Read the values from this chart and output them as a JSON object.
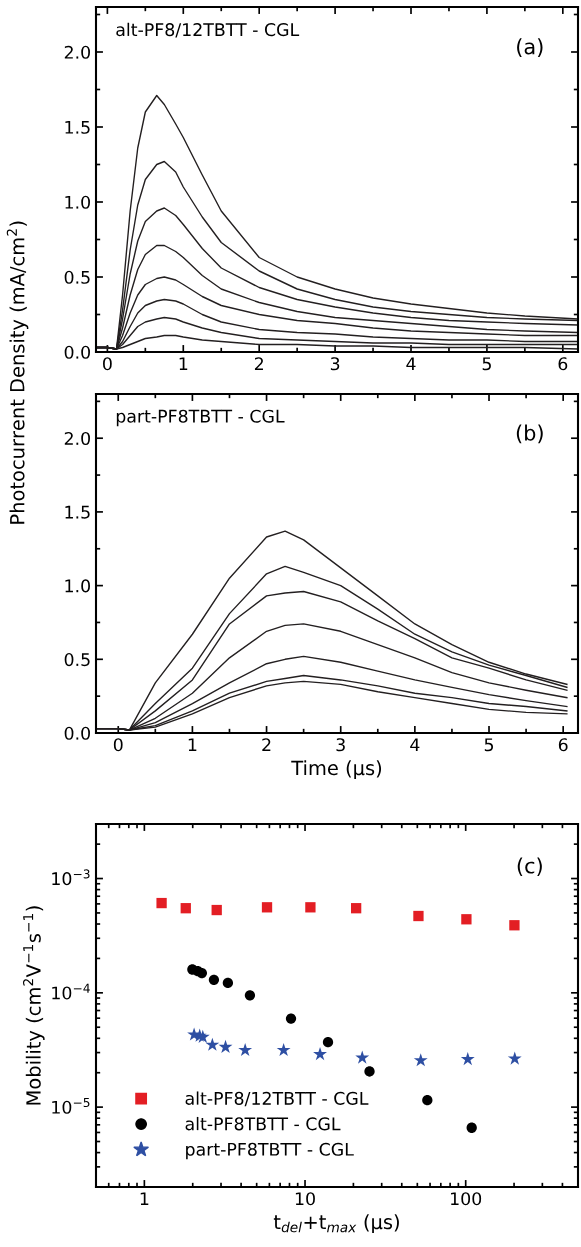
{
  "chart_data": [
    {
      "type": "line",
      "ylabel": "Photocurrent Density (mA/cm$^{2}$)",
      "annotations": [
        "alt-PF8/12TBTT - CGL",
        "(a)"
      ],
      "xlim": [
        -0.15,
        6.2
      ],
      "ylim": [
        0,
        2.3
      ],
      "xticks": [
        0,
        1,
        2,
        3,
        4,
        5,
        6
      ],
      "yticks": [
        {
          "value": 0,
          "label": "0.0"
        },
        {
          "value": 0.5,
          "label": "0.5"
        },
        {
          "value": 1,
          "label": "1.0"
        },
        {
          "value": 1.5,
          "label": "1.5"
        },
        {
          "value": 2,
          "label": "2.0"
        }
      ],
      "grid": false,
      "legend": false,
      "line_style": "solid",
      "marker": "none",
      "x": [
        -0.15,
        0,
        0.12,
        0.2,
        0.3,
        0.4,
        0.5,
        0.65,
        0.75,
        0.9,
        1.0,
        1.25,
        1.5,
        2.0,
        2.5,
        3.0,
        3.5,
        4.0,
        4.5,
        5.0,
        5.5,
        6.2
      ],
      "series": [
        {
          "color": "#231f20",
          "values": [
            0.03,
            0.03,
            0.02,
            0.38,
            0.94,
            1.36,
            1.6,
            1.71,
            1.65,
            1.52,
            1.43,
            1.18,
            0.94,
            0.63,
            0.5,
            0.42,
            0.36,
            0.32,
            0.29,
            0.26,
            0.24,
            0.22
          ]
        },
        {
          "color": "#231f20",
          "values": [
            0.03,
            0.03,
            0.02,
            0.28,
            0.68,
            0.98,
            1.15,
            1.25,
            1.27,
            1.2,
            1.1,
            0.9,
            0.73,
            0.54,
            0.42,
            0.35,
            0.3,
            0.27,
            0.25,
            0.23,
            0.22,
            0.21
          ]
        },
        {
          "color": "#231f20",
          "values": [
            0.03,
            0.03,
            0.02,
            0.22,
            0.52,
            0.74,
            0.87,
            0.94,
            0.96,
            0.91,
            0.85,
            0.69,
            0.56,
            0.43,
            0.35,
            0.3,
            0.26,
            0.23,
            0.21,
            0.2,
            0.19,
            0.18
          ]
        },
        {
          "color": "#231f20",
          "values": [
            0.03,
            0.03,
            0.02,
            0.16,
            0.38,
            0.55,
            0.65,
            0.71,
            0.71,
            0.67,
            0.63,
            0.51,
            0.42,
            0.33,
            0.27,
            0.23,
            0.21,
            0.19,
            0.17,
            0.15,
            0.14,
            0.13
          ]
        },
        {
          "color": "#231f20",
          "values": [
            0.03,
            0.03,
            0.02,
            0.11,
            0.26,
            0.38,
            0.45,
            0.49,
            0.5,
            0.48,
            0.45,
            0.37,
            0.31,
            0.25,
            0.21,
            0.19,
            0.16,
            0.14,
            0.13,
            0.12,
            0.11,
            0.11
          ]
        },
        {
          "color": "#231f20",
          "values": [
            0.03,
            0.03,
            0.02,
            0.07,
            0.17,
            0.26,
            0.31,
            0.34,
            0.35,
            0.34,
            0.32,
            0.25,
            0.2,
            0.15,
            0.13,
            0.12,
            0.1,
            0.09,
            0.08,
            0.08,
            0.07,
            0.07
          ]
        },
        {
          "color": "#231f20",
          "values": [
            0.03,
            0.03,
            0.02,
            0.05,
            0.11,
            0.17,
            0.2,
            0.22,
            0.23,
            0.22,
            0.2,
            0.16,
            0.13,
            0.09,
            0.08,
            0.07,
            0.06,
            0.06,
            0.05,
            0.05,
            0.05,
            0.05
          ]
        },
        {
          "color": "#231f20",
          "values": [
            0.03,
            0.03,
            0.02,
            0.03,
            0.05,
            0.07,
            0.09,
            0.1,
            0.11,
            0.11,
            0.1,
            0.08,
            0.07,
            0.05,
            0.05,
            0.04,
            0.04,
            0.03,
            0.03,
            0.03,
            0.03,
            0.02
          ]
        }
      ]
    },
    {
      "type": "line",
      "xlabel": "Time (µs)",
      "annotations": [
        "part-PF8TBTT - CGL",
        "(b)"
      ],
      "xlim": [
        -0.3,
        6.2
      ],
      "ylim": [
        0,
        2.3
      ],
      "xticks": [
        0,
        1,
        2,
        3,
        4,
        5,
        6
      ],
      "yticks": [
        {
          "value": 0,
          "label": "0.0"
        },
        {
          "value": 0.5,
          "label": "0.5"
        },
        {
          "value": 1,
          "label": "1.0"
        },
        {
          "value": 1.5,
          "label": "1.5"
        },
        {
          "value": 2,
          "label": "2.0"
        }
      ],
      "grid": false,
      "legend": false,
      "line_style": "solid",
      "marker": "none",
      "x": [
        -0.3,
        0,
        0.15,
        0.5,
        1.0,
        1.5,
        2.0,
        2.25,
        2.5,
        3.0,
        3.5,
        4.0,
        4.5,
        5.0,
        5.5,
        6.05
      ],
      "series": [
        {
          "color": "#231f20",
          "values": [
            0.03,
            0.03,
            0.02,
            0.34,
            0.67,
            1.05,
            1.33,
            1.37,
            1.31,
            1.12,
            0.93,
            0.74,
            0.6,
            0.48,
            0.4,
            0.33
          ]
        },
        {
          "color": "#231f20",
          "values": [
            0.03,
            0.03,
            0.02,
            0.2,
            0.44,
            0.81,
            1.08,
            1.13,
            1.09,
            1.0,
            0.84,
            0.67,
            0.55,
            0.46,
            0.39,
            0.31
          ]
        },
        {
          "color": "#231f20",
          "values": [
            0.03,
            0.03,
            0.02,
            0.15,
            0.36,
            0.74,
            0.93,
            0.95,
            0.96,
            0.89,
            0.76,
            0.64,
            0.51,
            0.44,
            0.36,
            0.29
          ]
        },
        {
          "color": "#231f20",
          "values": [
            0.03,
            0.03,
            0.02,
            0.1,
            0.27,
            0.51,
            0.69,
            0.73,
            0.74,
            0.69,
            0.6,
            0.51,
            0.41,
            0.34,
            0.29,
            0.24
          ]
        },
        {
          "color": "#231f20",
          "values": [
            0.03,
            0.03,
            0.02,
            0.07,
            0.2,
            0.34,
            0.47,
            0.5,
            0.52,
            0.48,
            0.42,
            0.36,
            0.31,
            0.26,
            0.22,
            0.18
          ]
        },
        {
          "color": "#231f20",
          "values": [
            0.03,
            0.03,
            0.02,
            0.05,
            0.15,
            0.27,
            0.35,
            0.37,
            0.39,
            0.36,
            0.32,
            0.27,
            0.24,
            0.2,
            0.18,
            0.15
          ]
        },
        {
          "color": "#231f20",
          "values": [
            0.03,
            0.03,
            0.02,
            0.04,
            0.13,
            0.24,
            0.32,
            0.34,
            0.35,
            0.33,
            0.28,
            0.24,
            0.2,
            0.16,
            0.14,
            0.13
          ]
        }
      ]
    },
    {
      "type": "scatter",
      "xlabel": "t$_{del}$+t$_{max}$ (µs)",
      "ylabel": "Mobility (cm$^{2}$V$^{−1}$s$^{−1}$)",
      "annotations": [
        "(c)"
      ],
      "log": "xy",
      "xlim": [
        0.5,
        500
      ],
      "ylim": [
        2e-06,
        0.003
      ],
      "xticks": [
        1,
        10,
        100
      ],
      "yticks": [
        {
          "value": 1e-05,
          "label": "10$^{−5}$"
        },
        {
          "value": 0.0001,
          "label": "10$^{−4}$"
        },
        {
          "value": 0.001,
          "label": "10$^{−3}$"
        }
      ],
      "grid": false,
      "legend": "bottom left",
      "series": [
        {
          "name": "alt-PF8/12TBTT - CGL",
          "color": "#e31e24",
          "marker": "square",
          "x": [
            1.28,
            1.81,
            2.82,
            5.8,
            10.8,
            20.8,
            50.8,
            101,
            201
          ],
          "values": [
            0.00061,
            0.00055,
            0.00053,
            0.00056,
            0.00056,
            0.00055,
            0.00047,
            0.00044,
            0.00039
          ]
        },
        {
          "name": "alt-PF8TBTT - CGL",
          "color": "#000000",
          "marker": "circle",
          "x": [
            1.99,
            2.15,
            2.28,
            2.71,
            3.31,
            4.54,
            8.18,
            13.9,
            25.2,
            57.7,
            109
          ],
          "values": [
            0.00016,
            0.000155,
            0.000149,
            0.00013,
            0.000122,
            9.5e-05,
            5.95e-05,
            3.7e-05,
            2.05e-05,
            1.15e-05,
            6.6e-06
          ]
        },
        {
          "name": "part-PF8TBTT - CGL",
          "color": "#2e4fa3",
          "marker": "star",
          "x": [
            2.04,
            2.21,
            2.31,
            2.65,
            3.2,
            4.24,
            7.36,
            12.4,
            22.7,
            52.5,
            103,
            202
          ],
          "values": [
            4.3e-05,
            4.2e-05,
            4.1e-05,
            3.5e-05,
            3.35e-05,
            3.15e-05,
            3.15e-05,
            2.9e-05,
            2.7e-05,
            2.56e-05,
            2.62e-05,
            2.65e-05
          ]
        }
      ]
    }
  ]
}
